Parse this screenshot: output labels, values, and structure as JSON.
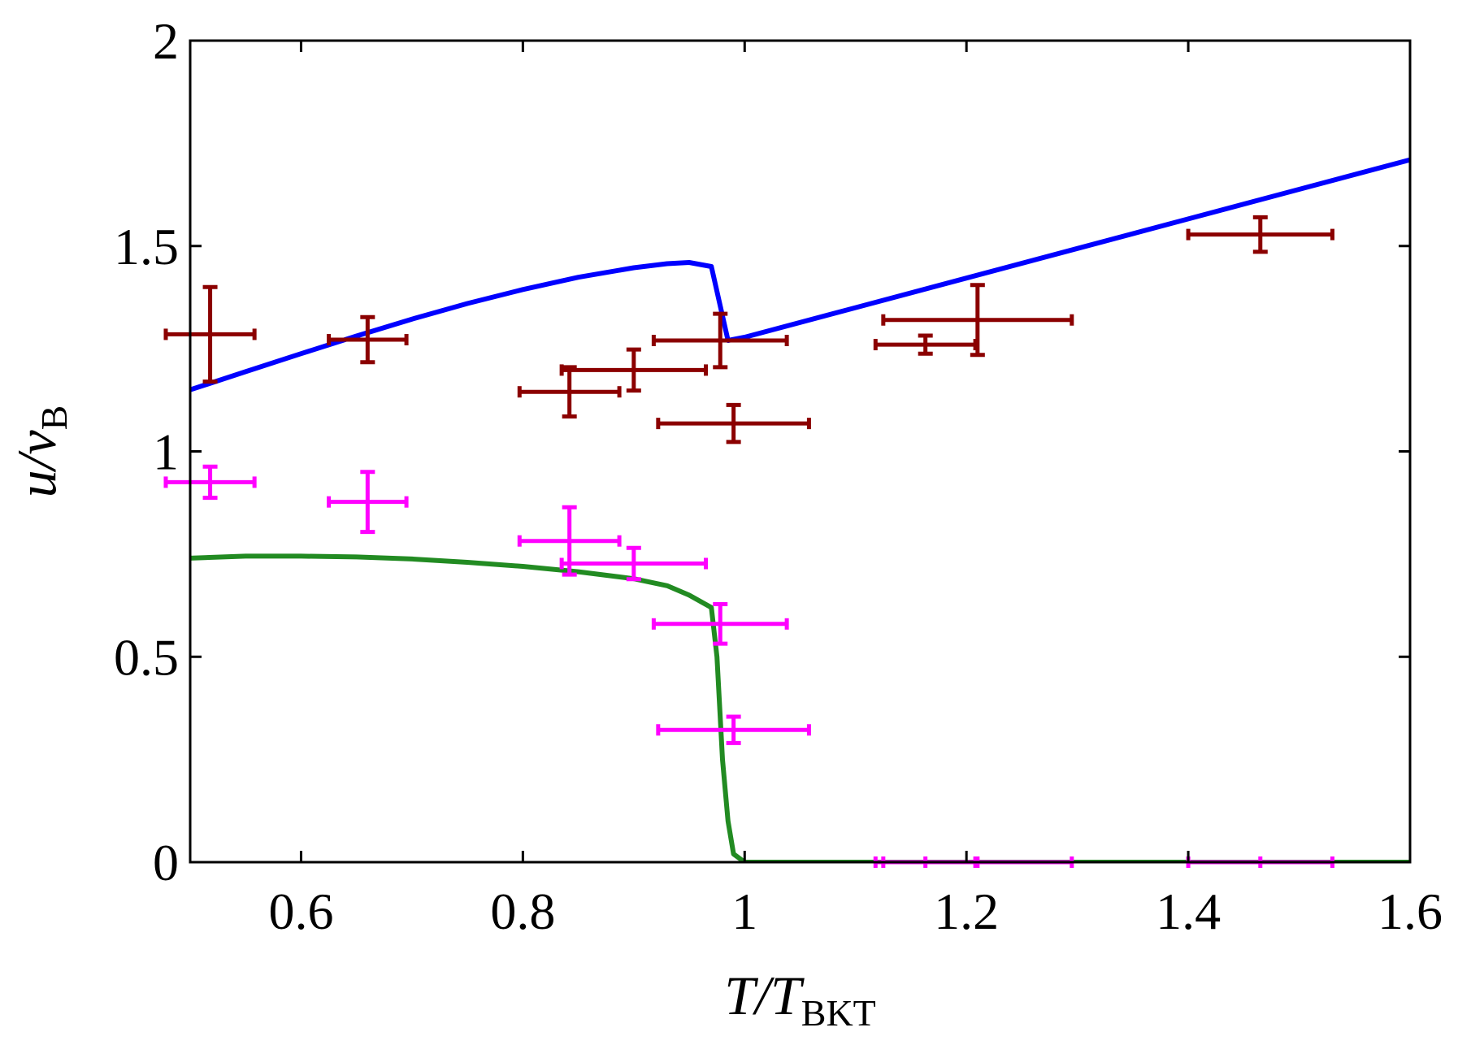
{
  "chart_data": {
    "type": "scatter",
    "title": "",
    "xlabel": {
      "main": "T/T",
      "sub": "BKT"
    },
    "ylabel": {
      "main": "u/v",
      "sub": "B"
    },
    "xlim": [
      0.5,
      1.6
    ],
    "ylim": [
      0,
      2
    ],
    "x_ticks": [
      0.6,
      0.8,
      1.0,
      1.2,
      1.4,
      1.6
    ],
    "x_tick_labels": [
      "0.6",
      "0.8",
      "1",
      "1.2",
      "1.4",
      "1.6"
    ],
    "y_ticks": [
      0,
      0.5,
      1.0,
      1.5,
      2.0
    ],
    "y_tick_labels": [
      "0",
      "0.5",
      "1",
      "1.5",
      "2"
    ],
    "grid": false,
    "colors": {
      "first_sound_data": "#8b0000",
      "second_sound_data": "#ff00ff",
      "first_sound_theory": "#0000ff",
      "second_sound_theory": "#228b22"
    },
    "series": [
      {
        "name": "first_sound_theory",
        "kind": "line",
        "x": [
          0.5,
          0.55,
          0.6,
          0.65,
          0.7,
          0.75,
          0.8,
          0.85,
          0.9,
          0.93,
          0.95,
          0.97,
          0.985,
          1.0,
          1.1,
          1.2,
          1.3,
          1.4,
          1.5,
          1.6
        ],
        "y": [
          1.15,
          1.194,
          1.238,
          1.281,
          1.322,
          1.36,
          1.394,
          1.424,
          1.447,
          1.457,
          1.46,
          1.45,
          1.27,
          1.278,
          1.35,
          1.422,
          1.494,
          1.566,
          1.638,
          1.71
        ]
      },
      {
        "name": "second_sound_theory",
        "kind": "line",
        "x": [
          0.5,
          0.55,
          0.6,
          0.65,
          0.7,
          0.75,
          0.8,
          0.85,
          0.9,
          0.93,
          0.95,
          0.97,
          0.975,
          0.98,
          0.985,
          0.99,
          1.0,
          1.1,
          1.2,
          1.3,
          1.4,
          1.5,
          1.6
        ],
        "y": [
          0.74,
          0.745,
          0.745,
          0.743,
          0.738,
          0.73,
          0.72,
          0.707,
          0.69,
          0.673,
          0.65,
          0.62,
          0.5,
          0.25,
          0.1,
          0.02,
          0.0,
          0.0,
          0.0,
          0.0,
          0.0,
          0.0,
          0.0
        ]
      },
      {
        "name": "first_sound_data",
        "kind": "errorbar",
        "points": [
          {
            "x": 0.518,
            "y": 1.285,
            "xerr": 0.04,
            "yerr": 0.115
          },
          {
            "x": 0.66,
            "y": 1.272,
            "xerr": 0.035,
            "yerr": 0.055
          },
          {
            "x": 0.842,
            "y": 1.145,
            "xerr": 0.045,
            "yerr": 0.06
          },
          {
            "x": 0.9,
            "y": 1.198,
            "xerr": 0.065,
            "yerr": 0.05
          },
          {
            "x": 0.978,
            "y": 1.27,
            "xerr": 0.06,
            "yerr": 0.065
          },
          {
            "x": 0.99,
            "y": 1.068,
            "xerr": 0.068,
            "yerr": 0.045
          },
          {
            "x": 1.163,
            "y": 1.26,
            "xerr": 0.045,
            "yerr": 0.022
          },
          {
            "x": 1.21,
            "y": 1.32,
            "xerr": 0.085,
            "yerr": 0.085
          },
          {
            "x": 1.465,
            "y": 1.528,
            "xerr": 0.065,
            "yerr": 0.042
          }
        ]
      },
      {
        "name": "second_sound_data",
        "kind": "errorbar",
        "points": [
          {
            "x": 0.518,
            "y": 0.925,
            "xerr": 0.04,
            "yerr": 0.038
          },
          {
            "x": 0.66,
            "y": 0.877,
            "xerr": 0.035,
            "yerr": 0.073
          },
          {
            "x": 0.842,
            "y": 0.782,
            "xerr": 0.045,
            "yerr": 0.082
          },
          {
            "x": 0.9,
            "y": 0.727,
            "xerr": 0.065,
            "yerr": 0.038
          },
          {
            "x": 0.978,
            "y": 0.58,
            "xerr": 0.06,
            "yerr": 0.048
          },
          {
            "x": 0.99,
            "y": 0.322,
            "xerr": 0.068,
            "yerr": 0.032
          },
          {
            "x": 1.163,
            "y": 0.0,
            "xerr": 0.045,
            "yerr": 0.0
          },
          {
            "x": 1.21,
            "y": 0.0,
            "xerr": 0.085,
            "yerr": 0.0
          },
          {
            "x": 1.465,
            "y": 0.0,
            "xerr": 0.065,
            "yerr": 0.0
          }
        ]
      }
    ]
  }
}
